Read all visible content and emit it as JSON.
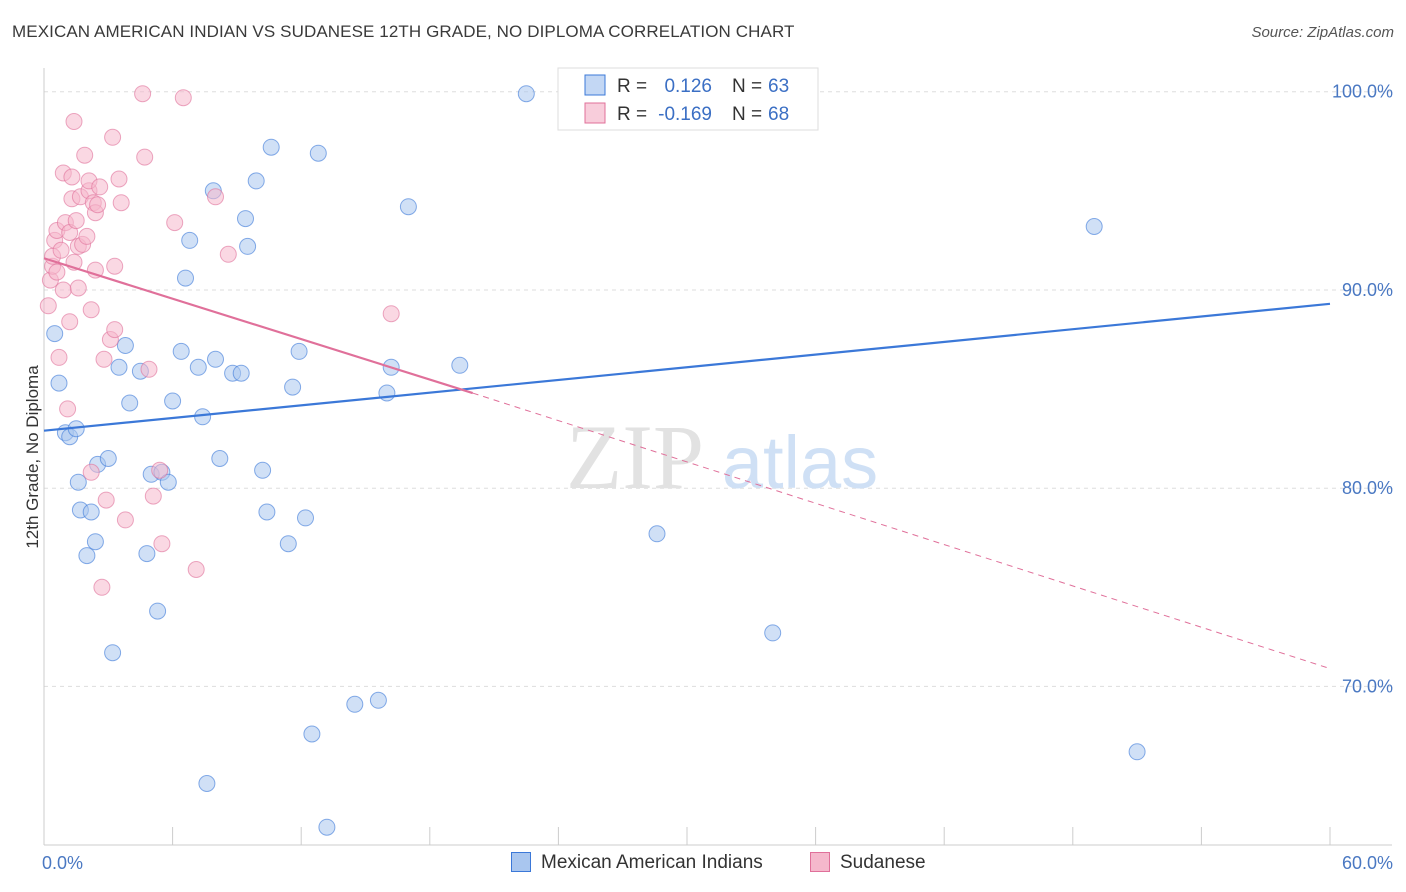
{
  "title": "MEXICAN AMERICAN INDIAN VS SUDANESE 12TH GRADE, NO DIPLOMA CORRELATION CHART",
  "source": "Source: ZipAtlas.com",
  "watermark": {
    "zip": "ZIP",
    "atlas": "atlas"
  },
  "colors": {
    "blue": "#3b78d8",
    "blue_fill": "#a9c6ef",
    "pink": "#e0709a",
    "pink_fill": "#f5b8cc",
    "grid": "#dddddd",
    "tick_label": "#4a78c2"
  },
  "legend": {
    "rows": [
      {
        "r_label": "R =",
        "r_value": "0.126",
        "n_label": "N =",
        "n_value": "63"
      },
      {
        "r_label": "R =",
        "r_value": "-0.169",
        "n_label": "N =",
        "n_value": "68"
      }
    ]
  },
  "chart_data": {
    "type": "scatter",
    "title": "MEXICAN AMERICAN INDIAN VS SUDANESE 12TH GRADE, NO DIPLOMA CORRELATION CHART",
    "xlabel": "",
    "ylabel": "12th Grade, No Diploma",
    "xlim": [
      0,
      60
    ],
    "ylim": [
      62,
      101.5
    ],
    "x_tick_labels": [
      "0.0%",
      "60.0%"
    ],
    "y_ticks": [
      70,
      80,
      90,
      100
    ],
    "y_tick_labels": [
      "70.0%",
      "80.0%",
      "90.0%",
      "100.0%"
    ],
    "grid": true,
    "legend_position": "top-center",
    "series": [
      {
        "name": "Mexican American Indians",
        "r": 0.126,
        "n": 63,
        "trend": {
          "x": [
            0,
            60
          ],
          "y": [
            82.9,
            89.3
          ]
        },
        "points": [
          [
            0.5,
            87.8
          ],
          [
            0.7,
            85.3
          ],
          [
            1.0,
            82.8
          ],
          [
            1.2,
            82.6
          ],
          [
            1.5,
            83.0
          ],
          [
            1.6,
            80.3
          ],
          [
            1.7,
            78.9
          ],
          [
            2.0,
            76.6
          ],
          [
            2.2,
            78.8
          ],
          [
            2.4,
            77.3
          ],
          [
            2.5,
            81.2
          ],
          [
            3.0,
            81.5
          ],
          [
            3.2,
            71.7
          ],
          [
            3.5,
            86.1
          ],
          [
            3.8,
            87.2
          ],
          [
            4.0,
            84.3
          ],
          [
            4.5,
            85.9
          ],
          [
            4.8,
            76.7
          ],
          [
            5.0,
            80.7
          ],
          [
            5.3,
            73.8
          ],
          [
            5.5,
            80.8
          ],
          [
            5.8,
            80.3
          ],
          [
            6.0,
            84.4
          ],
          [
            6.4,
            86.9
          ],
          [
            6.6,
            90.6
          ],
          [
            6.8,
            92.5
          ],
          [
            7.2,
            86.1
          ],
          [
            7.4,
            83.6
          ],
          [
            7.6,
            65.1
          ],
          [
            7.9,
            95.0
          ],
          [
            8.0,
            86.5
          ],
          [
            8.2,
            81.5
          ],
          [
            8.8,
            85.8
          ],
          [
            9.2,
            85.8
          ],
          [
            9.4,
            93.6
          ],
          [
            9.5,
            92.2
          ],
          [
            9.9,
            95.5
          ],
          [
            10.2,
            80.9
          ],
          [
            10.4,
            78.8
          ],
          [
            10.6,
            97.2
          ],
          [
            11.4,
            77.2
          ],
          [
            11.6,
            85.1
          ],
          [
            11.9,
            86.9
          ],
          [
            12.2,
            78.5
          ],
          [
            12.5,
            67.6
          ],
          [
            12.8,
            96.9
          ],
          [
            13.2,
            62.9
          ],
          [
            14.5,
            69.1
          ],
          [
            15.6,
            69.3
          ],
          [
            16.0,
            84.8
          ],
          [
            16.2,
            86.1
          ],
          [
            17.0,
            94.2
          ],
          [
            19.4,
            86.2
          ],
          [
            22.5,
            99.9
          ],
          [
            26.4,
            100.0
          ],
          [
            27.0,
            100.0
          ],
          [
            28.6,
            77.7
          ],
          [
            29.6,
            100.0
          ],
          [
            34.0,
            72.7
          ],
          [
            49.0,
            93.2
          ],
          [
            51.0,
            66.7
          ]
        ]
      },
      {
        "name": "Sudanese",
        "r": -0.169,
        "n": 68,
        "trend": {
          "x": [
            0,
            20
          ],
          "y": [
            91.6,
            84.8
          ]
        },
        "trend_ext": {
          "x": [
            20,
            60
          ],
          "y": [
            84.8,
            70.9
          ]
        },
        "points": [
          [
            0.2,
            89.2
          ],
          [
            0.3,
            90.5
          ],
          [
            0.4,
            91.2
          ],
          [
            0.4,
            91.7
          ],
          [
            0.5,
            92.5
          ],
          [
            0.6,
            93.0
          ],
          [
            0.6,
            90.9
          ],
          [
            0.7,
            86.6
          ],
          [
            0.8,
            92.0
          ],
          [
            0.9,
            90.0
          ],
          [
            0.9,
            95.9
          ],
          [
            1.0,
            93.4
          ],
          [
            1.1,
            84.0
          ],
          [
            1.2,
            88.4
          ],
          [
            1.2,
            92.9
          ],
          [
            1.3,
            95.7
          ],
          [
            1.3,
            94.6
          ],
          [
            1.4,
            98.5
          ],
          [
            1.4,
            91.4
          ],
          [
            1.5,
            93.5
          ],
          [
            1.6,
            90.1
          ],
          [
            1.6,
            92.2
          ],
          [
            1.7,
            94.7
          ],
          [
            1.8,
            92.3
          ],
          [
            1.9,
            96.8
          ],
          [
            2.0,
            92.7
          ],
          [
            2.1,
            95.0
          ],
          [
            2.1,
            95.5
          ],
          [
            2.2,
            89.0
          ],
          [
            2.2,
            80.8
          ],
          [
            2.3,
            94.4
          ],
          [
            2.4,
            91.0
          ],
          [
            2.4,
            93.9
          ],
          [
            2.5,
            94.3
          ],
          [
            2.6,
            95.2
          ],
          [
            2.7,
            75.0
          ],
          [
            2.8,
            86.5
          ],
          [
            2.9,
            79.4
          ],
          [
            3.1,
            87.5
          ],
          [
            3.2,
            97.7
          ],
          [
            3.3,
            91.2
          ],
          [
            3.3,
            88.0
          ],
          [
            3.5,
            95.6
          ],
          [
            3.6,
            94.4
          ],
          [
            3.8,
            78.4
          ],
          [
            4.6,
            99.9
          ],
          [
            4.7,
            96.7
          ],
          [
            4.9,
            86.0
          ],
          [
            5.1,
            79.6
          ],
          [
            5.4,
            80.9
          ],
          [
            5.5,
            77.2
          ],
          [
            6.1,
            93.4
          ],
          [
            6.5,
            99.7
          ],
          [
            7.1,
            75.9
          ],
          [
            8.0,
            94.7
          ],
          [
            8.6,
            91.8
          ],
          [
            16.2,
            88.8
          ]
        ]
      }
    ]
  }
}
